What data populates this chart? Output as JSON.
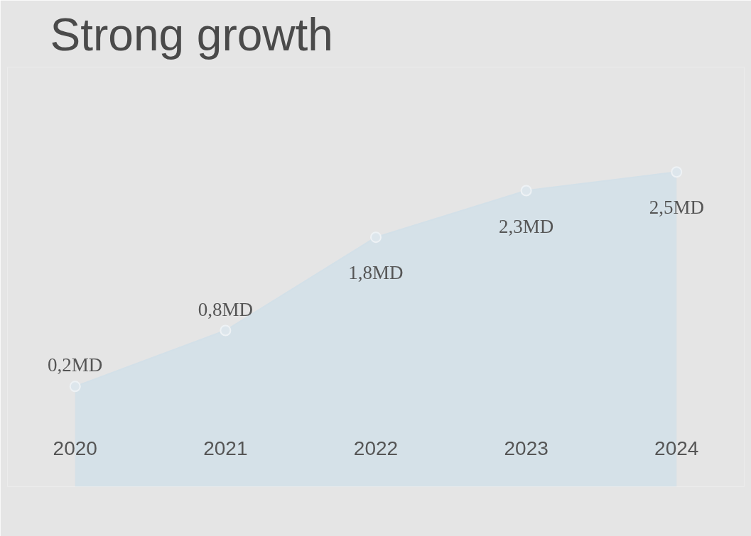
{
  "chart_data": {
    "type": "area",
    "title": "Strong growth",
    "categories": [
      "2020",
      "2021",
      "2022",
      "2023",
      "2024"
    ],
    "values": [
      0.2,
      0.8,
      1.8,
      2.3,
      2.5
    ],
    "value_labels": [
      "0,2MD",
      "0,8MD",
      "1,8MD",
      "2,3MD",
      "2,5MD"
    ],
    "color": "#d3e0e8",
    "marker": "circle"
  }
}
